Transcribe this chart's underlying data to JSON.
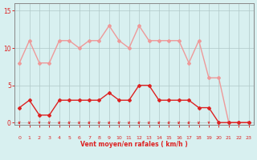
{
  "x": [
    0,
    1,
    2,
    3,
    4,
    5,
    6,
    7,
    8,
    9,
    10,
    11,
    12,
    13,
    14,
    15,
    16,
    17,
    18,
    19,
    20,
    21,
    22,
    23
  ],
  "wind_mean": [
    2,
    3,
    1,
    1,
    3,
    3,
    3,
    3,
    3,
    4,
    3,
    3,
    5,
    5,
    3,
    3,
    3,
    3,
    2,
    2,
    0,
    0,
    0,
    0
  ],
  "wind_gust": [
    8,
    11,
    8,
    8,
    11,
    11,
    10,
    11,
    11,
    13,
    11,
    10,
    13,
    11,
    11,
    11,
    11,
    8,
    11,
    6,
    6,
    0,
    0,
    0
  ],
  "line_mean_color": "#dd2222",
  "line_gust_color": "#ee9999",
  "bg_color": "#d8f0f0",
  "grid_color": "#b0c8c8",
  "axis_color": "#dd2222",
  "spine_color": "#888888",
  "xlabel": "Vent moyen/en rafales ( km/h )",
  "yticks": [
    0,
    5,
    10,
    15
  ],
  "xtick_labels": [
    "0",
    "1",
    "2",
    "3",
    "4",
    "5",
    "6",
    "7",
    "8",
    "9",
    "10",
    "11",
    "12",
    "13",
    "14",
    "15",
    "16",
    "17",
    "18",
    "19",
    "20",
    "21",
    "22",
    "23"
  ],
  "ylim": [
    -0.3,
    16
  ],
  "xlim": [
    -0.5,
    23.5
  ],
  "markersize": 2.0,
  "linewidth": 1.0,
  "arrow_angles": [
    225,
    225,
    270,
    225,
    225,
    225,
    225,
    225,
    225,
    225,
    225,
    225,
    225,
    225,
    225,
    225,
    225,
    225,
    225,
    270,
    270,
    270,
    270,
    270
  ]
}
